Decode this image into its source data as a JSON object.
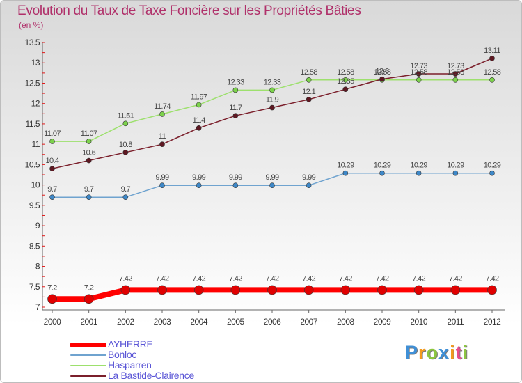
{
  "header": {
    "title": "Evolution du Taux de Taxe Foncière sur les Propriétés Bâties",
    "unit": "(en %)"
  },
  "chart_data": {
    "type": "line",
    "title": "Evolution du Taux de Taxe Foncière sur les Propriétés Bâties",
    "ylabel": "(en %)",
    "xlabel": "",
    "x": [
      2000,
      2001,
      2002,
      2003,
      2004,
      2005,
      2006,
      2007,
      2008,
      2009,
      2010,
      2011,
      2012
    ],
    "ylim": [
      7,
      13.5
    ],
    "yticks": [
      7,
      7.5,
      8,
      8.5,
      9,
      9.5,
      10,
      10.5,
      11,
      11.5,
      12,
      12.5,
      13,
      13.5
    ],
    "grid": false,
    "legend": "bottom-left",
    "series": [
      {
        "name": "AYHERRE",
        "color": "#ff0000",
        "marker": "#e00000",
        "width": 8,
        "r": 6.5,
        "labels": "above",
        "values": [
          7.2,
          7.2,
          7.42,
          7.42,
          7.42,
          7.42,
          7.42,
          7.42,
          7.42,
          7.42,
          7.42,
          7.42,
          7.42
        ]
      },
      {
        "name": "Bonloc",
        "color": "#6fa3cf",
        "marker": "#3e88c8",
        "width": 1.5,
        "r": 3.5,
        "labels": "above",
        "values": [
          9.7,
          9.7,
          9.7,
          9.99,
          9.99,
          9.99,
          9.99,
          9.99,
          10.29,
          10.29,
          10.29,
          10.29,
          10.29
        ]
      },
      {
        "name": "Hasparren",
        "color": "#9de06d",
        "marker": "#7cd24c",
        "width": 1.5,
        "r": 3.5,
        "labels": "above",
        "values": [
          11.07,
          11.07,
          11.51,
          11.74,
          11.97,
          12.33,
          12.33,
          12.58,
          12.58,
          12.58,
          12.58,
          12.58,
          12.58
        ]
      },
      {
        "name": "La Bastide-Clairence",
        "color": "#7b1f2b",
        "marker": "#5e1822",
        "width": 1.5,
        "r": 3.5,
        "labels": "above",
        "values": [
          10.4,
          10.6,
          10.8,
          11,
          11.4,
          11.7,
          11.9,
          12.1,
          12.35,
          12.6,
          12.73,
          12.73,
          13.11
        ]
      }
    ]
  },
  "logo": {
    "letters": [
      "P",
      "r",
      "o",
      "x",
      "i",
      "t",
      "i"
    ],
    "colors": [
      "#3f8fd6",
      "#f39a1d",
      "#8cc63f",
      "#3f8fd6",
      "#f39a1d",
      "#e94b8a",
      "#8cc63f"
    ]
  }
}
